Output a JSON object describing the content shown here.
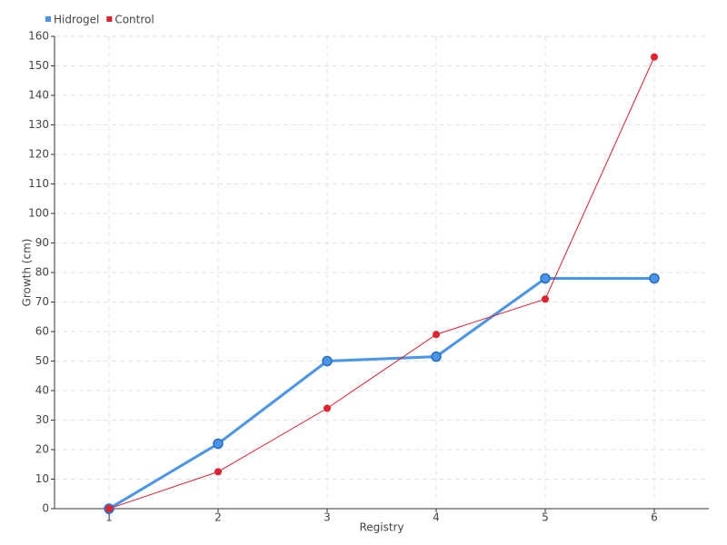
{
  "chart_data": {
    "type": "line",
    "x_label": "Registry",
    "y_label": "Growth (cm)",
    "x": [
      1,
      2,
      3,
      4,
      5,
      6
    ],
    "xlim": [
      0.5,
      6.5
    ],
    "xticks": [
      1,
      2,
      3,
      4,
      5,
      6
    ],
    "ylim": [
      0,
      160
    ],
    "yticks": [
      0,
      10,
      20,
      30,
      40,
      50,
      60,
      70,
      80,
      90,
      100,
      110,
      120,
      130,
      140,
      150,
      160
    ],
    "grid": true,
    "legend": "top-left",
    "series": [
      {
        "name": "Hidrogel",
        "color": "#4a94ea",
        "values": [
          0,
          22,
          50,
          51.5,
          78,
          78
        ]
      },
      {
        "name": "Control",
        "color": "#e2202e",
        "values": [
          0,
          12.5,
          34,
          59,
          71,
          153
        ]
      }
    ]
  }
}
